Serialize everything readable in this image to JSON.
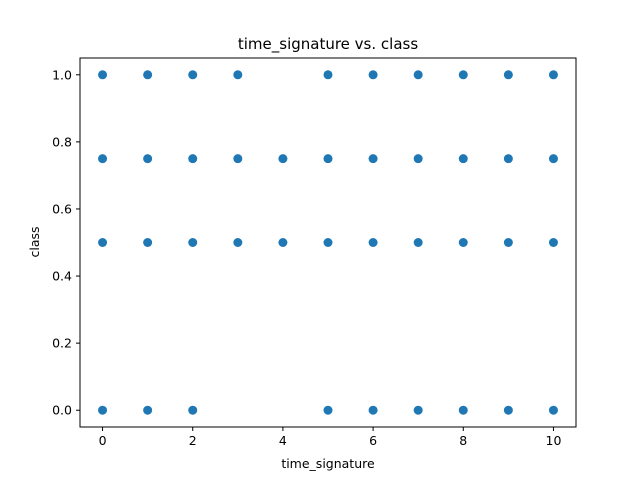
{
  "chart_data": {
    "type": "scatter",
    "title": "time_signature vs. class",
    "xlabel": "time_signature",
    "ylabel": "class",
    "xlim": [
      -0.5,
      10.5
    ],
    "ylim": [
      -0.05,
      1.05
    ],
    "xticks": [
      0,
      2,
      4,
      6,
      8,
      10
    ],
    "yticks": [
      0.0,
      0.2,
      0.4,
      0.6,
      0.8,
      1.0
    ],
    "ytick_labels": [
      "0.0",
      "0.2",
      "0.4",
      "0.6",
      "0.8",
      "1.0"
    ],
    "grid": false,
    "marker_color": "#1f77b4",
    "series": [
      {
        "x": [
          0,
          1,
          2,
          3,
          5,
          6,
          7,
          8,
          9,
          10,
          0,
          1,
          2,
          3,
          4,
          5,
          6,
          7,
          8,
          9,
          10,
          0,
          1,
          2,
          3,
          4,
          5,
          6,
          7,
          8,
          9,
          10,
          0,
          1,
          2,
          5,
          6,
          7,
          8,
          9,
          10
        ],
        "y": [
          1.0,
          1.0,
          1.0,
          1.0,
          1.0,
          1.0,
          1.0,
          1.0,
          1.0,
          1.0,
          0.75,
          0.75,
          0.75,
          0.75,
          0.75,
          0.75,
          0.75,
          0.75,
          0.75,
          0.75,
          0.75,
          0.5,
          0.5,
          0.5,
          0.5,
          0.5,
          0.5,
          0.5,
          0.5,
          0.5,
          0.5,
          0.5,
          0.0,
          0.0,
          0.0,
          0.0,
          0.0,
          0.0,
          0.0,
          0.0,
          0.0
        ]
      }
    ]
  }
}
